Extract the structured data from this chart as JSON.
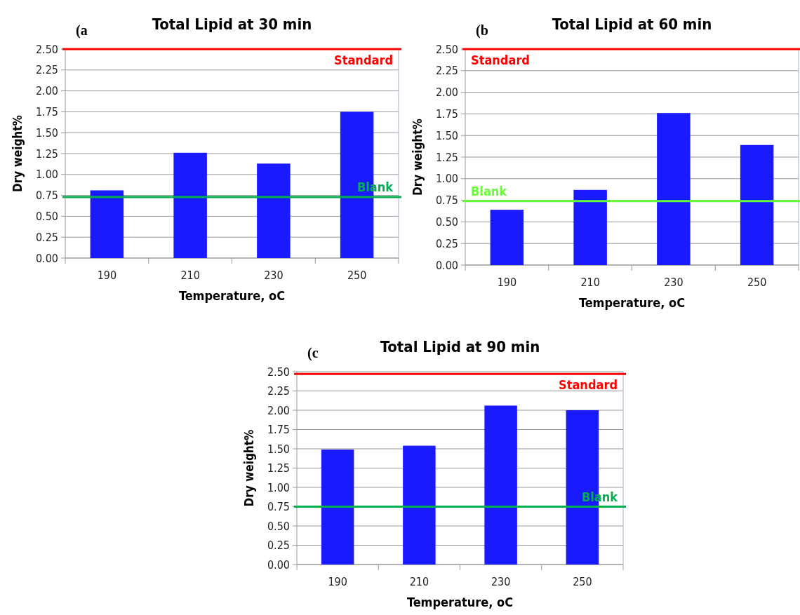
{
  "chart_data": [
    {
      "type": "bar",
      "title": "Total Lipid at 30 min",
      "xlabel": "Temperature, oC",
      "ylabel": "Dry weight%",
      "annotations": [
        "(a"
      ],
      "categories": [
        "190",
        "210",
        "230",
        "250"
      ],
      "values": [
        0.81,
        1.26,
        1.13,
        1.75
      ],
      "color": "#1a1aff",
      "ylim": [
        0,
        2.5
      ],
      "yticks": [
        {
          "value": 0,
          "label": "0.00"
        },
        {
          "value": 0.25,
          "label": "0.25"
        },
        {
          "value": 0.5,
          "label": "0.50"
        },
        {
          "value": 0.75,
          "label": "0.75"
        },
        {
          "value": 1,
          "label": "1.00"
        },
        {
          "value": 1.25,
          "label": "1.25"
        },
        {
          "value": 1.5,
          "label": "1.50"
        },
        {
          "value": 1.75,
          "label": "1.75"
        },
        {
          "value": 2,
          "label": "2.00"
        },
        {
          "value": 2.25,
          "label": "2.25"
        },
        {
          "value": 2.5,
          "label": "2.50"
        }
      ],
      "grid": "y",
      "ref_lines": [
        {
          "axis": "y",
          "value": 2.5,
          "label": "Standard",
          "color": "#ff0000"
        },
        {
          "axis": "y",
          "value": 0.73,
          "label": "Blank",
          "color": "#00b050"
        }
      ]
    },
    {
      "type": "bar",
      "title": "Total Lipid at 60 min",
      "xlabel": "Temperature, oC",
      "ylabel": "Dry weight%",
      "annotations": [
        "(b"
      ],
      "categories": [
        "190",
        "210",
        "230",
        "250"
      ],
      "values": [
        0.64,
        0.87,
        1.76,
        1.39
      ],
      "color": "#1a1aff",
      "ylim": [
        0,
        2.5
      ],
      "yticks": [
        {
          "value": 0,
          "label": "0.00"
        },
        {
          "value": 0.25,
          "label": "0.25"
        },
        {
          "value": 0.5,
          "label": "0.50"
        },
        {
          "value": 0.75,
          "label": "0.75"
        },
        {
          "value": 1,
          "label": "1.00"
        },
        {
          "value": 1.25,
          "label": "1.25"
        },
        {
          "value": 1.5,
          "label": "1.50"
        },
        {
          "value": 1.75,
          "label": "1.75"
        },
        {
          "value": 2,
          "label": "2.00"
        },
        {
          "value": 2.25,
          "label": "2.25"
        },
        {
          "value": 2.5,
          "label": "2.50"
        }
      ],
      "grid": "y",
      "ref_lines": [
        {
          "axis": "y",
          "value": 2.5,
          "label": "Standard",
          "color": "#ff0000"
        },
        {
          "axis": "y",
          "value": 0.74,
          "label": "Blank",
          "color": "#66ff33"
        }
      ]
    },
    {
      "type": "bar",
      "title": "Total Lipid at 90 min",
      "xlabel": "Temperature, oC",
      "ylabel": "Dry weight%",
      "annotations": [
        "(c"
      ],
      "categories": [
        "190",
        "210",
        "230",
        "250"
      ],
      "values": [
        1.49,
        1.54,
        2.06,
        2.0
      ],
      "color": "#1a1aff",
      "ylim": [
        0,
        2.5
      ],
      "yticks": [
        {
          "value": 0,
          "label": "0.00"
        },
        {
          "value": 0.25,
          "label": "0.25"
        },
        {
          "value": 0.5,
          "label": "0.50"
        },
        {
          "value": 0.75,
          "label": "0.75"
        },
        {
          "value": 1,
          "label": "1.00"
        },
        {
          "value": 1.25,
          "label": "1.25"
        },
        {
          "value": 1.5,
          "label": "1.50"
        },
        {
          "value": 1.75,
          "label": "1.75"
        },
        {
          "value": 2,
          "label": "2.00"
        },
        {
          "value": 2.25,
          "label": "2.25"
        },
        {
          "value": 2.5,
          "label": "2.50"
        }
      ],
      "grid": "y",
      "ref_lines": [
        {
          "axis": "y",
          "value": 2.47,
          "label": "Standard",
          "color": "#ff0000"
        },
        {
          "axis": "y",
          "value": 0.75,
          "label": "Blank",
          "color": "#00b050"
        }
      ]
    }
  ]
}
